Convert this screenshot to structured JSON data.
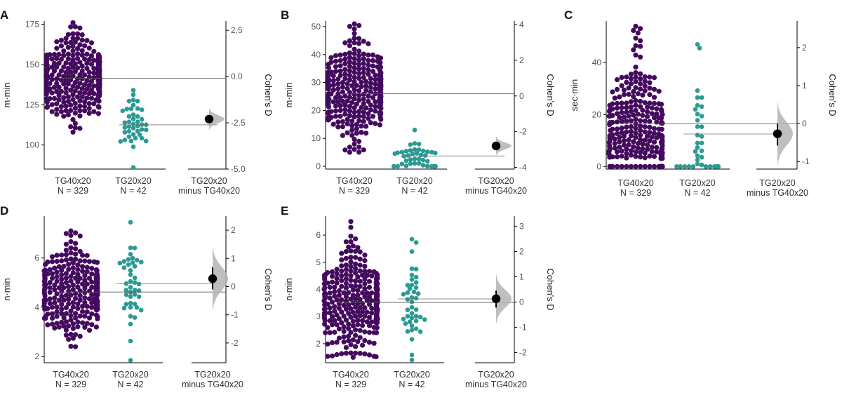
{
  "colors": {
    "group1": "#440a5e",
    "group2": "#2a9a92",
    "effect": "#000000",
    "dist": "#b4b4b4",
    "axis": "#000000"
  },
  "chart_data": [
    {
      "panel": "A",
      "type": "scatter",
      "subtype": "estimation-swarm",
      "ylabel": "m·min",
      "ylabel2": "Cohen's D",
      "ylim": [
        85,
        177
      ],
      "yticks": [
        100,
        125,
        150,
        175
      ],
      "y2lim": [
        -5.0,
        3.0
      ],
      "y2ticks": [
        -5.0,
        -2.5,
        0.0,
        2.5
      ],
      "y2ticklabels": [
        "-5.0",
        "-2.5",
        "0.0",
        "2.5"
      ],
      "categories": [
        {
          "name": "TG40x20",
          "n_label": "N = 329",
          "n": 329,
          "median": 141,
          "min": 108,
          "max": 176,
          "mean": 141.5
        },
        {
          "name": "TG20x20",
          "n_label": "N = 42",
          "n": 42,
          "median": 113,
          "min": 86,
          "max": 134,
          "mean": 112.5
        }
      ],
      "diff": {
        "label1": "TG20x20",
        "label2": "minus TG40x20",
        "effect": -2.3,
        "ci": [
          -2.5,
          -2.1
        ]
      }
    },
    {
      "panel": "B",
      "type": "scatter",
      "subtype": "estimation-swarm",
      "ylabel": "m·min",
      "ylabel2": "Cohen's D",
      "ylim": [
        -1,
        52
      ],
      "yticks": [
        0,
        10,
        20,
        30,
        40,
        50
      ],
      "y2lim": [
        -4.1,
        4.2
      ],
      "y2ticks": [
        -4,
        -2,
        0,
        2,
        4
      ],
      "y2ticklabels": [
        "-4",
        "-2",
        "0",
        "2",
        "4"
      ],
      "categories": [
        {
          "name": "TG40x20",
          "n_label": "N = 329",
          "n": 329,
          "median": 26,
          "min": 5,
          "max": 51,
          "mean": 26
        },
        {
          "name": "TG20x20",
          "n_label": "N = 42",
          "n": 42,
          "median": 3,
          "min": 0,
          "max": 13,
          "mean": 3.7
        }
      ],
      "diff": {
        "label1": "TG20x20",
        "label2": "minus TG40x20",
        "effect": -2.8,
        "ci": [
          -2.95,
          -2.65
        ]
      }
    },
    {
      "panel": "C",
      "type": "scatter",
      "subtype": "estimation-swarm",
      "ylabel": "sec·min",
      "ylabel2": "Cohen's D",
      "ylim": [
        -1,
        56
      ],
      "yticks": [
        0,
        20,
        40
      ],
      "y2lim": [
        -1.2,
        2.7
      ],
      "y2ticks": [
        -1,
        0,
        1,
        2
      ],
      "y2ticklabels": [
        "-1",
        "0",
        "1",
        "2"
      ],
      "categories": [
        {
          "name": "TG40x20",
          "n_label": "N = 329",
          "n": 329,
          "median": 14,
          "min": 0,
          "max": 54,
          "mean": 16.5
        },
        {
          "name": "TG20x20",
          "n_label": "N = 42",
          "n": 42,
          "median": 3,
          "min": 0,
          "max": 47,
          "mean": 12.5
        }
      ],
      "diff": {
        "label1": "TG20x20",
        "label2": "minus TG40x20",
        "effect": -0.27,
        "ci": [
          -0.58,
          0.0
        ]
      }
    },
    {
      "panel": "D",
      "type": "scatter",
      "subtype": "estimation-swarm",
      "ylabel": "n·min",
      "ylabel2": "Cohen's D",
      "ylim": [
        1.75,
        7.7
      ],
      "yticks": [
        2,
        4,
        6
      ],
      "y2lim": [
        -2.7,
        2.5
      ],
      "y2ticks": [
        -2,
        -1,
        0,
        1,
        2
      ],
      "y2ticklabels": [
        "-2",
        "-1",
        "0",
        "1",
        "2"
      ],
      "categories": [
        {
          "name": "TG40x20",
          "n_label": "N = 329",
          "n": 329,
          "median": 4.65,
          "min": 2.4,
          "max": 7.1,
          "mean": 4.62
        },
        {
          "name": "TG20x20",
          "n_label": "N = 42",
          "n": 42,
          "median": 4.95,
          "min": 1.85,
          "max": 7.45,
          "mean": 4.95
        }
      ],
      "diff": {
        "label1": "TG20x20",
        "label2": "minus TG40x20",
        "effect": 0.28,
        "ci": [
          -0.1,
          0.68
        ]
      }
    },
    {
      "panel": "E",
      "type": "scatter",
      "subtype": "estimation-swarm",
      "ylabel": "n·min",
      "ylabel2": "Cohen's D",
      "ylim": [
        1.3,
        6.7
      ],
      "yticks": [
        2,
        3,
        4,
        5,
        6
      ],
      "y2lim": [
        -2.4,
        3.4
      ],
      "y2ticks": [
        -2,
        -1,
        0,
        1,
        2,
        3
      ],
      "y2ticklabels": [
        "-2",
        "-1",
        "0",
        "1",
        "2",
        "3"
      ],
      "categories": [
        {
          "name": "TG40x20",
          "n_label": "N = 329",
          "n": 329,
          "median": 3.5,
          "min": 1.5,
          "max": 6.5,
          "mean": 3.52
        },
        {
          "name": "TG20x20",
          "n_label": "N = 42",
          "n": 42,
          "median": 3.5,
          "min": 1.4,
          "max": 5.85,
          "mean": 3.65
        }
      ],
      "diff": {
        "label1": "TG20x20",
        "label2": "minus TG40x20",
        "effect": 0.13,
        "ci": [
          -0.22,
          0.45
        ]
      }
    }
  ]
}
